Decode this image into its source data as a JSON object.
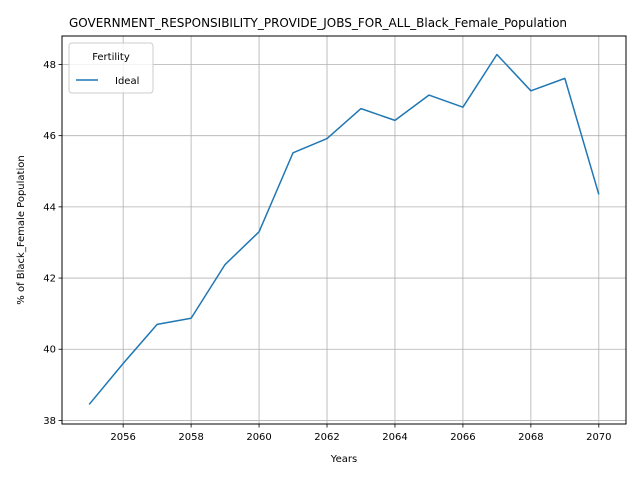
{
  "chart_data": {
    "type": "line",
    "title": "GOVERNMENT_RESPONSIBILITY_PROVIDE_JOBS_FOR_ALL_Black_Female_Population",
    "xlabel": "Years",
    "ylabel": "% of Black_Female Population",
    "xlim": [
      2054.2,
      2070.8
    ],
    "ylim": [
      37.9,
      48.8
    ],
    "xticks": [
      2056,
      2058,
      2060,
      2062,
      2064,
      2066,
      2068,
      2070
    ],
    "yticks": [
      38,
      40,
      42,
      44,
      46,
      48
    ],
    "grid": true,
    "legend": {
      "title": "Fertility",
      "placement": "top-left"
    },
    "series": [
      {
        "name": "Ideal",
        "color": "#1f77b4",
        "x": [
          2055,
          2056,
          2057,
          2058,
          2059,
          2060,
          2061,
          2062,
          2063,
          2064,
          2065,
          2066,
          2067,
          2068,
          2069,
          2070
        ],
        "y": [
          38.45,
          39.6,
          40.7,
          40.87,
          42.38,
          43.3,
          45.52,
          45.92,
          46.76,
          46.43,
          47.14,
          46.8,
          48.28,
          47.26,
          47.61,
          44.35
        ]
      }
    ]
  }
}
